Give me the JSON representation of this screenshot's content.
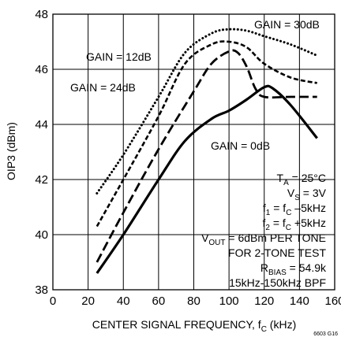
{
  "chart_data": {
    "type": "line",
    "title": "",
    "xlabel": "CENTER SIGNAL FREQUENCY, f_C (kHz)",
    "xlabel_parts": {
      "main": "CENTER SIGNAL FREQUENCY, f",
      "sub": "C",
      "tail": " (kHz)"
    },
    "ylabel": "OIP3 (dBm)",
    "xlim": [
      0,
      160
    ],
    "ylim": [
      38,
      48
    ],
    "xticks": [
      0,
      20,
      40,
      60,
      80,
      100,
      120,
      140,
      160
    ],
    "yticks": [
      38,
      40,
      42,
      44,
      46,
      48
    ],
    "grid": true,
    "series": [
      {
        "name": "GAIN = 0dB",
        "style": "solid",
        "x": [
          25,
          40,
          60,
          75,
          90,
          100,
          110,
          120,
          125,
          135,
          150
        ],
        "y": [
          38.6,
          40.0,
          42.0,
          43.4,
          44.2,
          44.5,
          44.9,
          45.35,
          45.3,
          44.7,
          43.5
        ]
      },
      {
        "name": "GAIN = 12dB",
        "style": "dash",
        "x": [
          25,
          40,
          60,
          80,
          90,
          100,
          105,
          110,
          115,
          120,
          135,
          150
        ],
        "y": [
          39.0,
          40.8,
          43.1,
          45.2,
          46.2,
          46.65,
          46.6,
          46.1,
          45.3,
          45.0,
          45.0,
          45.0
        ]
      },
      {
        "name": "GAIN = 24dB",
        "style": "dash-dot",
        "x": [
          25,
          40,
          60,
          75,
          90,
          100,
          110,
          120,
          135,
          150
        ],
        "y": [
          40.3,
          42.0,
          44.3,
          46.2,
          46.9,
          47.0,
          46.8,
          46.2,
          45.7,
          45.5
        ]
      },
      {
        "name": "GAIN = 30dB",
        "style": "dot",
        "x": [
          25,
          40,
          60,
          75,
          90,
          100,
          110,
          120,
          135,
          150
        ],
        "y": [
          41.5,
          42.9,
          45.0,
          46.6,
          47.3,
          47.45,
          47.4,
          47.2,
          46.9,
          46.5
        ]
      }
    ],
    "labels": {
      "gain0": "GAIN = 0dB",
      "gain12": "GAIN = 12dB",
      "gain24": "GAIN = 24dB",
      "gain30": "GAIN = 30dB"
    },
    "conditions": {
      "ta_main": "T",
      "ta_sub": "A",
      "ta_tail": " = 25°C",
      "vs_main": "V",
      "vs_sub": "S",
      "vs_tail": " = 3V",
      "f1_main": "f",
      "f1_sub": "1",
      "f1_mid": " = f",
      "f1_sub2": "C",
      "f1_tail": " –5kHz",
      "f2_main": "f",
      "f2_sub": "2",
      "f2_mid": " = f",
      "f2_sub2": "C",
      "f2_tail": " +5kHz",
      "vout_main": "V",
      "vout_sub": "OUT",
      "vout_tail": " = 6dBm PER TONE",
      "tone_line": "FOR 2-TONE TEST",
      "rbias_main": "R",
      "rbias_sub": "BIAS",
      "rbias_tail": " = 54.9k",
      "bpf_line": "15kHz-150kHz BPF"
    },
    "figure_id": "6603 G16"
  }
}
